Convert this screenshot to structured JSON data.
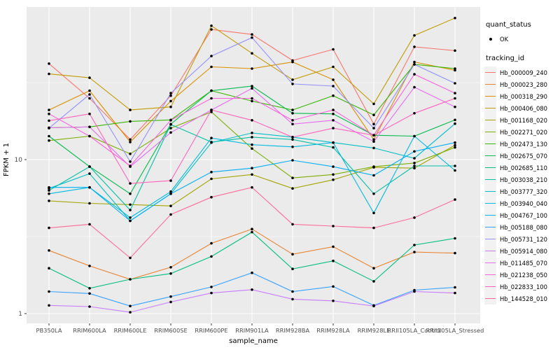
{
  "chart_data": {
    "type": "line",
    "title": "",
    "xlabel": "sample_name",
    "ylabel": "FPKM + 1",
    "y_scale": "log10",
    "y_ticks": [
      1,
      10
    ],
    "y_minor_ticks": [
      3.162,
      31.62
    ],
    "ylim": [
      0.87,
      98
    ],
    "grid": "on",
    "panel_background": "#EBEBEB",
    "gridline_color": "#FFFFFF",
    "tick_label_color": "#4D4D4D",
    "point_color": "#000000",
    "legend_position": "right",
    "categories": [
      "PB350LA",
      "RRIM600LA",
      "RRIM600LE",
      "RRIM600SE",
      "RRIM600PE",
      "RRIM901LA",
      "RRIM928BA",
      "RRIM928LA",
      "RRIM928LE",
      "RRII105LA_Control",
      "RRII105LA_Stressed"
    ],
    "legend_quant": {
      "title": "quant_status",
      "items": [
        {
          "label": "OK",
          "marker": "black-point"
        }
      ]
    },
    "legend_tracking_title": "tracking_id",
    "series": [
      {
        "name": "Hb_000009_240",
        "color": "#F8766D",
        "values": [
          42,
          25,
          13.5,
          26,
          70,
          65,
          44,
          52,
          17,
          54,
          51
        ]
      },
      {
        "name": "Hb_000023_280",
        "color": "#EA8331",
        "values": [
          2.57,
          2.04,
          1.67,
          2.0,
          2.86,
          3.54,
          2.43,
          2.72,
          1.97,
          2.51,
          2.47
        ]
      },
      {
        "name": "Hb_000318_290",
        "color": "#D89000",
        "values": [
          21,
          28,
          13,
          24,
          40,
          39,
          43,
          33,
          13.5,
          43,
          38
        ]
      },
      {
        "name": "Hb_000406_080",
        "color": "#C09B00",
        "values": [
          36,
          34,
          21,
          22,
          74,
          49,
          33,
          40,
          23,
          64,
          83
        ]
      },
      {
        "name": "Hb_001168_020",
        "color": "#A3A500",
        "values": [
          5.4,
          5.2,
          5.1,
          5.0,
          7.5,
          8.0,
          6.5,
          7.4,
          8.9,
          8.8,
          12.4
        ]
      },
      {
        "name": "Hb_002271_020",
        "color": "#7CAE00",
        "values": [
          13.3,
          14.2,
          10.9,
          16,
          20.4,
          11.8,
          7.6,
          8.0,
          9.0,
          9.5,
          12.0
        ]
      },
      {
        "name": "Hb_002473_130",
        "color": "#39B600",
        "values": [
          16.1,
          16.3,
          17.7,
          18.1,
          28,
          24,
          21,
          26,
          19.5,
          41.5,
          39
        ]
      },
      {
        "name": "Hb_002675_070",
        "color": "#00BB4E",
        "values": [
          14.2,
          9.0,
          6.0,
          17,
          28,
          30,
          20,
          19.8,
          14.4,
          14.2,
          18.1
        ]
      },
      {
        "name": "Hb_002685_110",
        "color": "#00BF7D",
        "values": [
          1.97,
          1.46,
          1.67,
          1.82,
          2.35,
          3.38,
          1.95,
          2.2,
          1.62,
          2.79,
          3.08
        ]
      },
      {
        "name": "Hb_003038_210",
        "color": "#00C1A3",
        "values": [
          6.3,
          9.0,
          4.7,
          16.9,
          13,
          14,
          13.5,
          12,
          6.0,
          9.1,
          9.1
        ]
      },
      {
        "name": "Hb_003777_320",
        "color": "#00BFC4",
        "values": [
          6.5,
          8.1,
          4.0,
          6.0,
          12.9,
          14.9,
          14.0,
          12.9,
          11.9,
          10.2,
          17.1
        ]
      },
      {
        "name": "Hb_003940_040",
        "color": "#00BAE0",
        "values": [
          6.0,
          6.6,
          4.2,
          6.2,
          13.8,
          12.5,
          12.1,
          12.9,
          4.5,
          14.2,
          8.5
        ]
      },
      {
        "name": "Hb_004767_100",
        "color": "#00B0F6",
        "values": [
          6.6,
          6.6,
          4.0,
          6.0,
          8.3,
          8.8,
          9.9,
          9.0,
          7.9,
          11.3,
          12.9
        ]
      },
      {
        "name": "Hb_005188_080",
        "color": "#35A2FF",
        "values": [
          1.39,
          1.35,
          1.12,
          1.29,
          1.49,
          1.84,
          1.39,
          1.5,
          1.13,
          1.42,
          1.48
        ]
      },
      {
        "name": "Hb_005731_120",
        "color": "#9590FF",
        "values": [
          16,
          26.5,
          9.7,
          27,
          47,
          62,
          31,
          30,
          16,
          41.5,
          31.3
        ]
      },
      {
        "name": "Hb_005914_080",
        "color": "#C77CFF",
        "values": [
          1.13,
          1.11,
          1.02,
          1.19,
          1.36,
          1.43,
          1.24,
          1.21,
          1.12,
          1.39,
          1.36
        ]
      },
      {
        "name": "Hb_011485_070",
        "color": "#E76BF3",
        "values": [
          16.1,
          16.3,
          9.0,
          15,
          21,
          29,
          17,
          18,
          13.1,
          29.5,
          22
        ]
      },
      {
        "name": "Hb_021238_050",
        "color": "#FA62DB",
        "values": [
          19.8,
          14.2,
          9.1,
          18,
          25,
          25,
          18,
          21,
          14.4,
          35.8,
          27
        ]
      },
      {
        "name": "Hb_022833_100",
        "color": "#FF62BC",
        "values": [
          17.9,
          19.8,
          7.0,
          7.3,
          21,
          18,
          14,
          16,
          14.4,
          20,
          25
        ]
      },
      {
        "name": "Hb_144528_010",
        "color": "#FF6A98",
        "values": [
          3.6,
          3.8,
          2.3,
          4.4,
          5.7,
          6.6,
          3.8,
          3.7,
          3.6,
          4.2,
          5.5
        ]
      }
    ]
  }
}
